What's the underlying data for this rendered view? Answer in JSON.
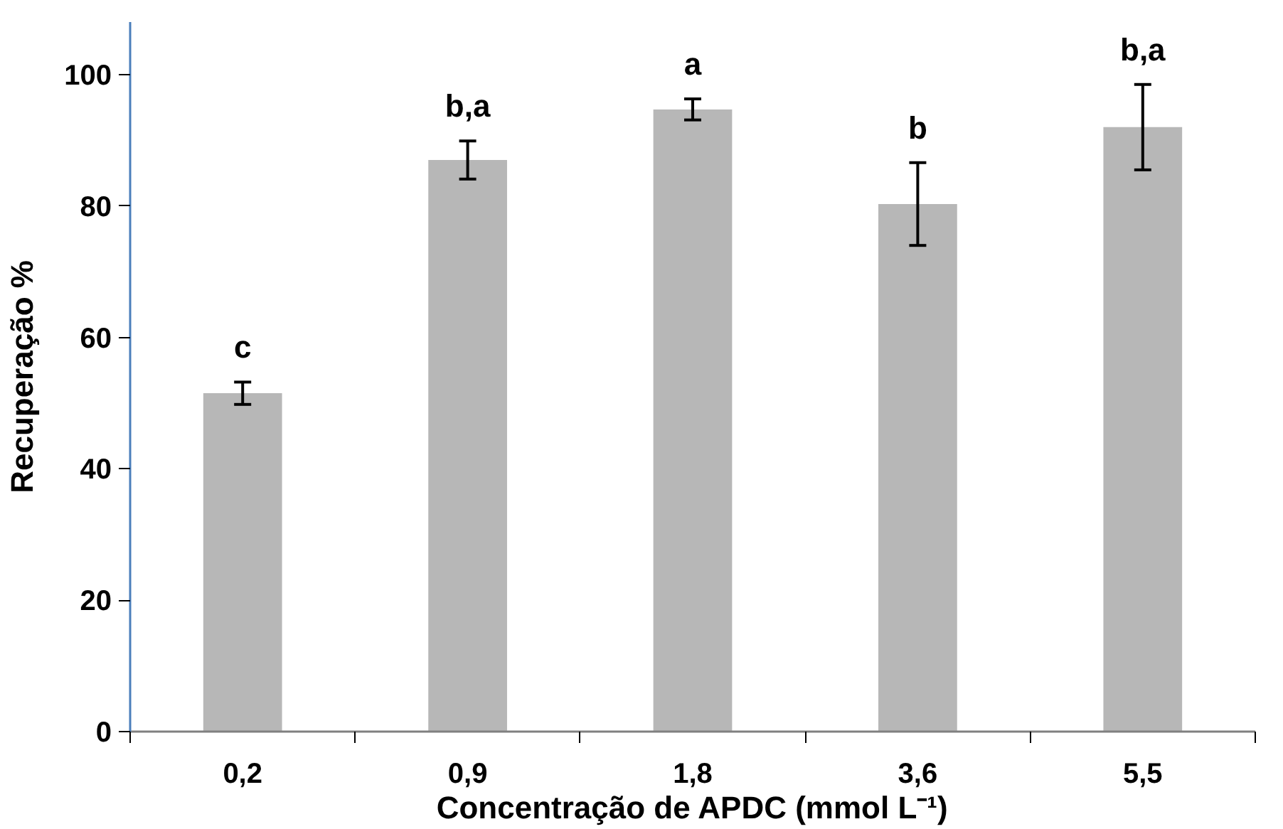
{
  "chart_data": {
    "type": "bar",
    "xlabel": "Concentração de APDC (mmol L⁻¹)",
    "ylabel": "Recuperação %",
    "categories": [
      "0,2",
      "0,9",
      "1,8",
      "3,6",
      "5,5"
    ],
    "series": [
      {
        "color": "#b7b7b7",
        "values": [
          51.5,
          87.0,
          94.7,
          80.3,
          92.0
        ],
        "errors": [
          1.7,
          2.9,
          1.6,
          6.3,
          6.5
        ]
      }
    ],
    "ylim": [
      0,
      108
    ],
    "yticks": [
      0,
      20,
      40,
      60,
      80,
      100
    ],
    "grid": false,
    "annotations": [
      "c",
      "b,a",
      "a",
      "b",
      "b,a"
    ]
  }
}
